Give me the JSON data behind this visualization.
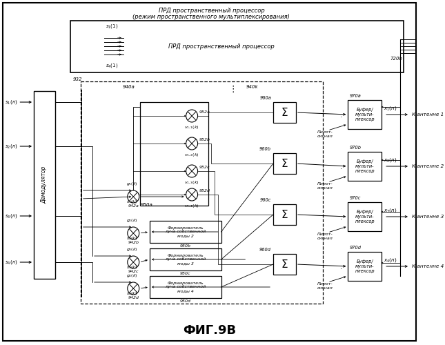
{
  "bg": "#ffffff",
  "title_fig": "ФИГ.9В",
  "main_title_line1": "ПРД пространственный процессор",
  "main_title_line2": "(режим пространственного мультиплексирования)",
  "prd_label": "ПРД пространственный процессор",
  "label_720b": "720b",
  "label_932": "932",
  "label_940a": "940a",
  "label_940k": "940k",
  "label_960a": "960a",
  "label_960b": "960b",
  "label_960c": "960c",
  "label_960d": "960d",
  "label_950a": "950a",
  "label_950b": "950b",
  "label_950c": "950c",
  "label_950d": "950d",
  "label_952a": "952a",
  "label_952b": "952b",
  "label_952c": "952c",
  "label_952d": "952d",
  "label_970a": "970a",
  "label_970b": "970b",
  "label_970c": "970c",
  "label_970d": "970d",
  "label_942a": "942a",
  "label_942b": "942b",
  "label_942c": "942c",
  "label_942d": "942d",
  "s1_1": "$s_1(1)$",
  "s4_1": "$s_4(1)$",
  "s1k": "$s_1(k)$",
  "s2k": "$s_2(k)$",
  "s3k": "$s_3(k)$",
  "s4k": "$s_4(k)$",
  "g1k": "$g_1(k)$",
  "g2k": "$g_2(k)$",
  "g3k": "$g_3(k)$",
  "g4k": "$g_4(k)$",
  "v11k": "$v_{1,1}(k)$",
  "v12k": "$v_{1,2}(k)$",
  "v13k": "$v_{1,3}(k)$",
  "v14k": "$v_{1,4}(k)$",
  "demod": "Демодулятор",
  "buf_mux": "Буфер/\nмульти-\nплексор",
  "pilot": "Пилот-\nсигнал",
  "mode2": "Формирователь\nлуча собственной\nмоды 2",
  "mode3": "Формирователь\nлуча собственной\nмоды 3",
  "mode4": "Формирователь\nлуча собственной\nмоды 4",
  "ant1": "К антенне 1",
  "ant2": "К антенне 2",
  "ant3": "К антенне 3",
  "ant4": "К антенне 4",
  "x1n": "$x_1(n)$",
  "x2n": "$x_2(n)$",
  "x3n": "$x_3(n)$",
  "x4n": "$x_4(n)$",
  "s1n": "$s_1(n)$",
  "s2n": "$s_2(n)$",
  "s3n": "$s_3(n)$",
  "s4n": "$s_4(n)$"
}
